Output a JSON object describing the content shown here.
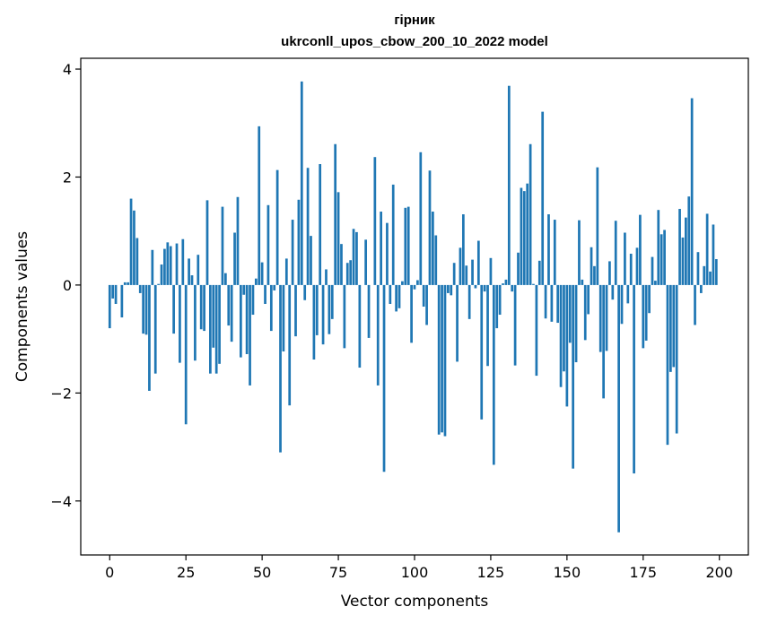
{
  "chart_data": {
    "type": "bar",
    "title_line1": "гірник",
    "title_line2": "ukrconll_upos_cbow_200_10_2022 model",
    "xlabel": "Vector components",
    "ylabel": "Components values",
    "xlim": [
      -9.5,
      209.5
    ],
    "ylim": [
      -5.0,
      4.2
    ],
    "xticks": [
      0,
      25,
      50,
      75,
      100,
      125,
      150,
      175,
      200
    ],
    "xtick_labels": [
      "0",
      "25",
      "50",
      "75",
      "100",
      "125",
      "150",
      "175",
      "200"
    ],
    "yticks": [
      -4,
      -2,
      0,
      2,
      4
    ],
    "ytick_labels": [
      "−4",
      "−2",
      "0",
      "2",
      "4"
    ],
    "grid": false,
    "bar_color": "#1f77b4",
    "x": [
      0,
      1,
      2,
      3,
      4,
      5,
      6,
      7,
      8,
      9,
      10,
      11,
      12,
      13,
      14,
      15,
      16,
      17,
      18,
      19,
      20,
      21,
      22,
      23,
      24,
      25,
      26,
      27,
      28,
      29,
      30,
      31,
      32,
      33,
      34,
      35,
      36,
      37,
      38,
      39,
      40,
      41,
      42,
      43,
      44,
      45,
      46,
      47,
      48,
      49,
      50,
      51,
      52,
      53,
      54,
      55,
      56,
      57,
      58,
      59,
      60,
      61,
      62,
      63,
      64,
      65,
      66,
      67,
      68,
      69,
      70,
      71,
      72,
      73,
      74,
      75,
      76,
      77,
      78,
      79,
      80,
      81,
      82,
      83,
      84,
      85,
      86,
      87,
      88,
      89,
      90,
      91,
      92,
      93,
      94,
      95,
      96,
      97,
      98,
      99,
      100,
      101,
      102,
      103,
      104,
      105,
      106,
      107,
      108,
      109,
      110,
      111,
      112,
      113,
      114,
      115,
      116,
      117,
      118,
      119,
      120,
      121,
      122,
      123,
      124,
      125,
      126,
      127,
      128,
      129,
      130,
      131,
      132,
      133,
      134,
      135,
      136,
      137,
      138,
      139,
      140,
      141,
      142,
      143,
      144,
      145,
      146,
      147,
      148,
      149,
      150,
      151,
      152,
      153,
      154,
      155,
      156,
      157,
      158,
      159,
      160,
      161,
      162,
      163,
      164,
      165,
      166,
      167,
      168,
      169,
      170,
      171,
      172,
      173,
      174,
      175,
      176,
      177,
      178,
      179,
      180,
      181,
      182,
      183,
      184,
      185,
      186,
      187,
      188,
      189,
      190,
      191,
      192,
      193,
      194,
      195,
      196,
      197,
      198,
      199
    ],
    "values": [
      -0.8,
      -0.25,
      -0.35,
      0.0,
      -0.6,
      0.05,
      0.05,
      1.6,
      1.38,
      0.87,
      -0.15,
      -0.9,
      -0.92,
      -1.96,
      0.65,
      -1.64,
      0.02,
      0.38,
      0.67,
      0.79,
      0.72,
      -0.9,
      0.77,
      -1.44,
      0.85,
      -2.58,
      0.49,
      0.18,
      -1.4,
      0.56,
      -0.82,
      -0.85,
      1.57,
      -1.64,
      -1.16,
      -1.64,
      -1.46,
      1.45,
      0.22,
      -0.75,
      -1.05,
      0.97,
      1.63,
      -1.34,
      -0.18,
      -1.28,
      -1.86,
      -0.55,
      0.12,
      2.94,
      0.42,
      -0.35,
      1.48,
      -0.85,
      -0.1,
      2.13,
      -3.1,
      -1.23,
      0.49,
      -2.23,
      1.21,
      -0.95,
      1.58,
      3.77,
      -0.28,
      2.17,
      0.91,
      -1.38,
      -0.93,
      2.24,
      -1.1,
      0.29,
      -0.91,
      -0.63,
      2.61,
      1.72,
      0.76,
      -1.17,
      0.41,
      0.46,
      1.04,
      0.98,
      -1.53,
      0.0,
      0.84,
      -0.98,
      0.0,
      2.37,
      -1.86,
      1.36,
      -3.46,
      1.15,
      -0.35,
      1.86,
      -0.49,
      -0.43,
      0.07,
      1.43,
      1.45,
      -1.07,
      -0.08,
      0.09,
      2.46,
      -0.4,
      -0.74,
      2.12,
      1.36,
      0.92,
      -2.77,
      -2.73,
      -2.8,
      -0.15,
      -0.19,
      0.41,
      -1.42,
      0.69,
      1.31,
      0.36,
      -0.63,
      0.47,
      -0.06,
      0.82,
      -2.49,
      -0.12,
      -1.5,
      0.5,
      -3.33,
      -0.8,
      -0.55,
      0.03,
      0.1,
      3.69,
      -0.12,
      -1.49,
      0.6,
      1.8,
      1.74,
      1.88,
      2.61,
      0.02,
      -1.68,
      0.45,
      3.21,
      -0.62,
      1.31,
      -0.68,
      1.21,
      -0.7,
      -1.89,
      -1.6,
      -2.25,
      -1.07,
      -3.4,
      -1.43,
      1.2,
      0.1,
      -1.02,
      -0.54,
      0.7,
      0.35,
      2.18,
      -1.24,
      -2.1,
      -1.22,
      0.44,
      -0.27,
      1.19,
      -4.58,
      -0.72,
      0.97,
      -0.34,
      0.58,
      -3.49,
      0.69,
      1.3,
      -1.17,
      -1.03,
      -0.52,
      0.52,
      0.08,
      1.39,
      0.94,
      1.02,
      -2.96,
      -1.61,
      -1.52,
      -2.75,
      1.41,
      0.88,
      1.25,
      1.64,
      3.46,
      -0.74,
      0.61,
      -0.15,
      0.35,
      1.32,
      0.25,
      1.12,
      0.48
    ]
  }
}
